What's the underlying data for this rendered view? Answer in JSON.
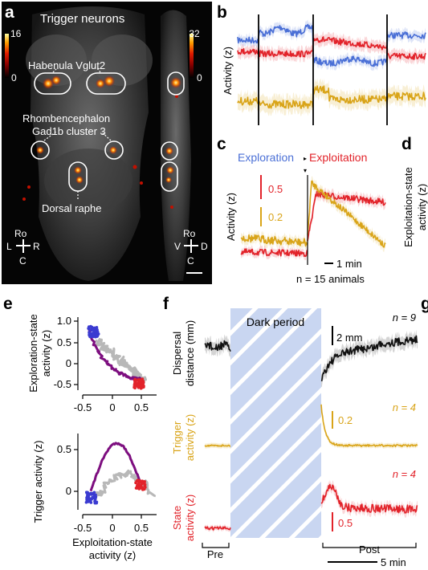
{
  "colors": {
    "blue": "#4a6fd6",
    "red": "#e2232a",
    "gold": "#d9a418",
    "black": "#111111",
    "grey": "#b8b8b8",
    "purple": "#7d0e7f",
    "dark_band": "#c6d4f0"
  },
  "panel_a": {
    "label": "a",
    "title": "Trigger neurons",
    "scale_left": {
      "max": "16",
      "min": "0"
    },
    "scale_right": {
      "max": "32",
      "min": "0"
    },
    "region_1": "Habenula Vglut2",
    "region_2_line1": "Rhombencephalon",
    "region_2_line2": "Gad1b cluster 3",
    "region_3": "Dorsal raphe",
    "compass_left": {
      "top": "Ro",
      "left": "L",
      "right": "R",
      "bottom": "C"
    },
    "compass_right": {
      "top": "Ro",
      "left": "V",
      "right": "D",
      "bottom": "C"
    }
  },
  "panel_b": {
    "label": "b",
    "ylabel": "Activity (z)"
  },
  "panel_c": {
    "label": "c",
    "header_left": "Exploration",
    "header_right": "Exploitation",
    "ylabel": "Activity (z)",
    "scale_red": "0.5",
    "scale_gold": "0.2",
    "time_scale": "1 min",
    "n_label": "n = 15 animals"
  },
  "panel_d": {
    "label": "d",
    "ylabel_line1": "Exploitation-state",
    "ylabel_line2": "activity (z)"
  },
  "panel_e": {
    "label": "e",
    "top_ylabel_line1": "Exploration-state",
    "top_ylabel_line2": "activity (z)",
    "top_yticks": [
      "1.0",
      "0.5",
      "0",
      "-0.5"
    ],
    "bottom_ylabel": "Trigger activity (z)",
    "bottom_yticks": [
      "0.5",
      "0"
    ],
    "xticks": [
      "-0.5",
      "0",
      "0.5"
    ],
    "xlabel_line1": "Exploitation-state",
    "xlabel_line2": "activity (z)"
  },
  "panel_f": {
    "label": "f",
    "dark_label": "Dark period",
    "row1_ylabel_line1": "Dispersal",
    "row1_ylabel_line2": "distance (mm)",
    "row1_n": "n = 9",
    "row1_scale": "2 mm",
    "row2_ylabel_line1": "Trigger",
    "row2_ylabel_line2": "activity (z)",
    "row2_n": "n = 4",
    "row2_scale": "0.2",
    "row3_ylabel_line1": "State",
    "row3_ylabel_line2": "activity (z)",
    "row3_n": "n = 4",
    "row3_scale": "0.5",
    "pre_label": "Pre",
    "post_label": "Post",
    "time_scale": "5 min"
  },
  "panel_g": {
    "label": "g"
  }
}
